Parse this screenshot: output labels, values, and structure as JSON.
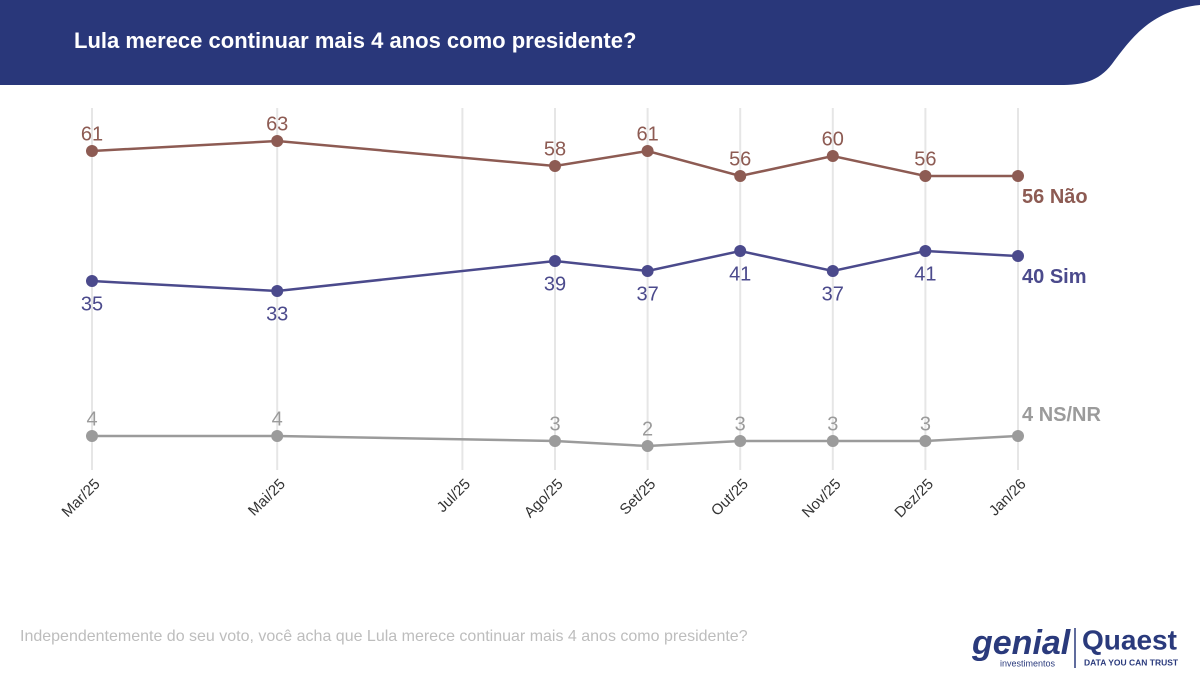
{
  "chart_data": {
    "type": "line",
    "title": "Lula merece continuar mais 4 anos como presidente?",
    "subtitle": "Independentemente do seu voto, você acha que Lula merece continuar mais 4 anos como presidente?",
    "x": [
      "2025-03",
      "2025-05",
      "2025-08",
      "2025-09",
      "2025-10",
      "2025-11",
      "2025-12",
      "2026-01"
    ],
    "xlim": [
      "2025-03",
      "2026-01"
    ],
    "xticks": [
      {
        "value": "2025-03",
        "label": "Mar/25"
      },
      {
        "value": "2025-05",
        "label": "Mai/25"
      },
      {
        "value": "2025-07",
        "label": "Jul/25"
      },
      {
        "value": "2025-08",
        "label": "Ago/25"
      },
      {
        "value": "2025-09",
        "label": "Set/25"
      },
      {
        "value": "2025-10",
        "label": "Out/25"
      },
      {
        "value": "2025-11",
        "label": "Nov/25"
      },
      {
        "value": "2025-12",
        "label": "Dez/25"
      },
      {
        "value": "2026-01",
        "label": "Jan/26"
      }
    ],
    "ylim": [
      0,
      70
    ],
    "grid": true,
    "series": [
      {
        "name": "Não",
        "color": "#8d5b53",
        "values": [
          61,
          63,
          58,
          61,
          56,
          60,
          56,
          56
        ]
      },
      {
        "name": "Sim",
        "color": "#4b4a8c",
        "values": [
          35,
          33,
          39,
          37,
          41,
          37,
          41,
          40
        ]
      },
      {
        "name": "NS/NR",
        "color": "#9b9b9b",
        "values": [
          4,
          4,
          3,
          2,
          3,
          3,
          3,
          4
        ]
      }
    ]
  },
  "logos": {
    "genial": "genial",
    "genial_sub": "investimentos",
    "quaest": "Quaest",
    "quaest_sub": "DATA YOU CAN TRUST"
  }
}
